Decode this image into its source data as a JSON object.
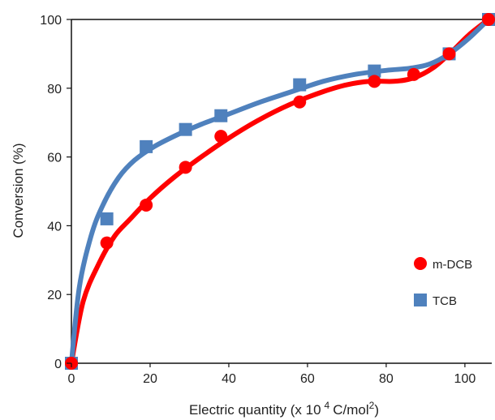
{
  "chart_data": {
    "type": "scatter",
    "title": "",
    "xlabel": "Electric quantity (x 10",
    "xlabel_unit_pre": "C/mol",
    "xlabel_exp1": "4",
    "xlabel_exp2": "2",
    "xlabel_close": ")",
    "ylabel": "Conversion (%)",
    "xlim": [
      0,
      106
    ],
    "ylim": [
      0,
      100
    ],
    "xticks": [
      0,
      20,
      40,
      60,
      80,
      100
    ],
    "yticks": [
      0,
      20,
      40,
      60,
      80,
      100
    ],
    "grid": false,
    "legend_position": "right",
    "series": [
      {
        "name": "m-DCB",
        "color": "#ff0000",
        "marker": "circle",
        "points": [
          [
            0,
            0
          ],
          [
            9,
            35
          ],
          [
            19,
            46
          ],
          [
            29,
            57
          ],
          [
            38,
            66
          ],
          [
            58,
            76
          ],
          [
            77,
            82
          ],
          [
            87,
            84
          ],
          [
            96,
            90
          ],
          [
            106,
            100
          ]
        ],
        "fit_curve": [
          [
            0,
            0
          ],
          [
            3,
            18
          ],
          [
            7,
            29
          ],
          [
            11,
            37
          ],
          [
            15,
            42
          ],
          [
            20,
            48
          ],
          [
            26,
            54
          ],
          [
            33,
            60
          ],
          [
            40,
            65.5
          ],
          [
            48,
            71
          ],
          [
            56,
            75.5
          ],
          [
            64,
            79
          ],
          [
            70,
            81
          ],
          [
            76,
            82
          ],
          [
            82,
            82
          ],
          [
            87,
            83
          ],
          [
            92,
            86
          ],
          [
            97,
            91
          ],
          [
            101,
            95.5
          ],
          [
            106,
            100
          ]
        ]
      },
      {
        "name": "TCB",
        "color": "#4f81bd",
        "marker": "square",
        "points": [
          [
            0,
            0
          ],
          [
            9,
            42
          ],
          [
            19,
            63
          ],
          [
            29,
            68
          ],
          [
            38,
            72
          ],
          [
            58,
            81
          ],
          [
            77,
            85
          ],
          [
            96,
            90
          ],
          [
            106,
            100
          ]
        ],
        "fit_curve": [
          [
            0,
            0
          ],
          [
            2,
            22
          ],
          [
            5,
            37
          ],
          [
            8,
            46
          ],
          [
            12,
            54
          ],
          [
            16,
            59
          ],
          [
            21,
            63
          ],
          [
            27,
            66.5
          ],
          [
            33,
            69.5
          ],
          [
            40,
            72.5
          ],
          [
            48,
            76
          ],
          [
            56,
            79
          ],
          [
            64,
            82
          ],
          [
            72,
            84
          ],
          [
            80,
            85.2
          ],
          [
            86,
            85.8
          ],
          [
            91,
            87
          ],
          [
            96,
            90
          ],
          [
            101,
            94.5
          ],
          [
            106,
            100
          ]
        ]
      }
    ]
  }
}
